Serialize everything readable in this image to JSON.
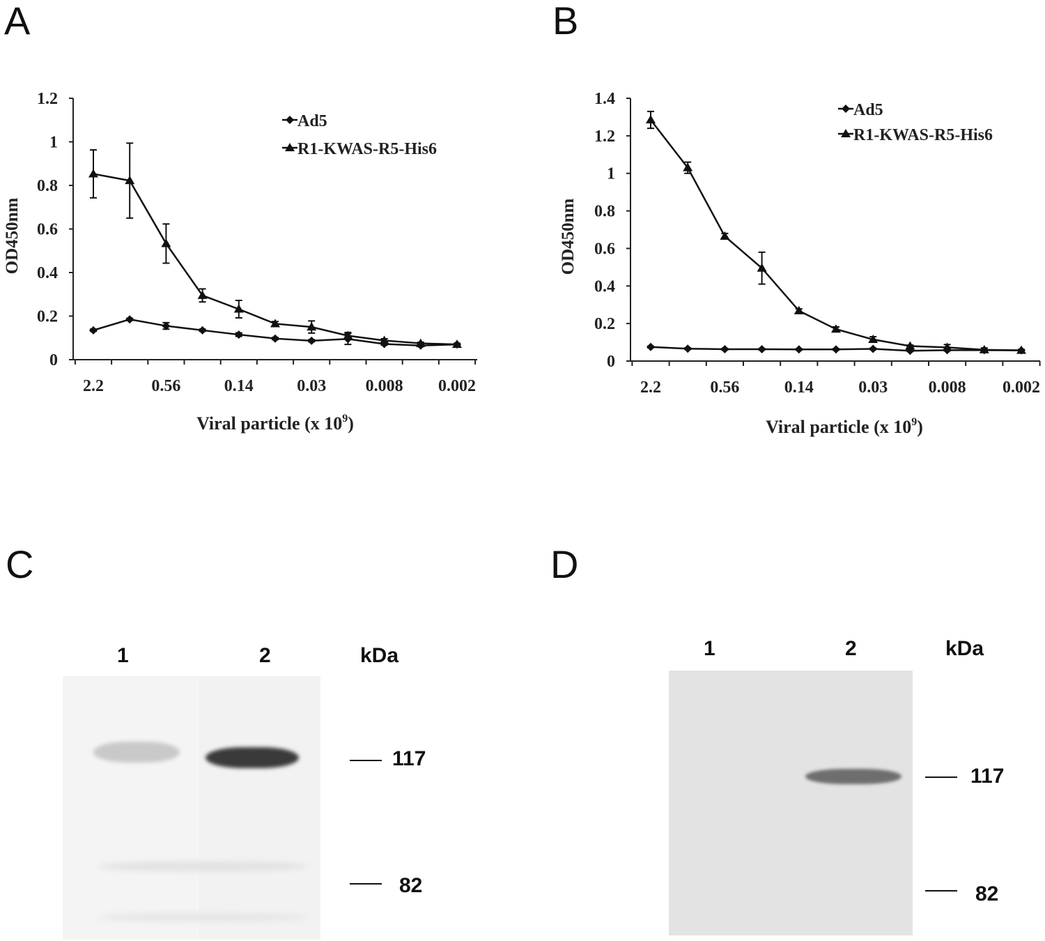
{
  "panels": {
    "A": "A",
    "B": "B",
    "C": "C",
    "D": "D"
  },
  "chart_data": [
    {
      "type": "line",
      "panel": "A",
      "ylabel": "OD450nm",
      "xlabel": "Viral particle (x 10",
      "xlabel_sup": "9",
      "xlabel_close": ")",
      "ylim": [
        0,
        1.2
      ],
      "yticks": [
        "0",
        "0.2",
        "0.4",
        "0.6",
        "0.8",
        "1",
        "1.2"
      ],
      "yticks_values": [
        0,
        0.2,
        0.4,
        0.6,
        0.8,
        1.0,
        1.2
      ],
      "xtick_labels": [
        "2.2",
        "0.56",
        "0.14",
        "0.03",
        "0.008",
        "0.002"
      ],
      "x_points": 11,
      "series": [
        {
          "name": "Ad5",
          "marker": "diamond",
          "values": [
            0.135,
            0.185,
            0.155,
            0.135,
            0.115,
            0.097,
            0.087,
            0.095,
            0.072,
            0.065,
            0.07
          ],
          "errors": [
            0.005,
            0.005,
            0.015,
            0.005,
            0.008,
            0.005,
            0.005,
            0.025,
            0.005,
            0.005,
            0.005
          ]
        },
        {
          "name": "R1-KWAS-R5-His6",
          "marker": "triangle",
          "values": [
            0.853,
            0.822,
            0.533,
            0.295,
            0.232,
            0.165,
            0.15,
            0.11,
            0.088,
            0.075,
            0.07
          ],
          "errors": [
            0.11,
            0.172,
            0.09,
            0.03,
            0.04,
            0.01,
            0.028,
            0.015,
            0.008,
            0.005,
            0.005
          ]
        }
      ],
      "legend_position": "top-right"
    },
    {
      "type": "line",
      "panel": "B",
      "ylabel": "OD450nm",
      "xlabel": "Viral particle (x 10",
      "xlabel_sup": "9",
      "xlabel_close": ")",
      "ylim": [
        0,
        1.4
      ],
      "yticks": [
        "0",
        "0.2",
        "0.4",
        "0.6",
        "0.8",
        "1",
        "1.2",
        "1.4"
      ],
      "yticks_values": [
        0,
        0.2,
        0.4,
        0.6,
        0.8,
        1.0,
        1.2,
        1.4
      ],
      "xtick_labels": [
        "2.2",
        "0.56",
        "0.14",
        "0.03",
        "0.008",
        "0.002"
      ],
      "x_points": 11,
      "series": [
        {
          "name": "Ad5",
          "marker": "diamond",
          "values": [
            0.075,
            0.066,
            0.063,
            0.063,
            0.062,
            0.062,
            0.065,
            0.055,
            0.058,
            0.058,
            0.057
          ],
          "errors": [
            0.004,
            0.004,
            0.004,
            0.004,
            0.004,
            0.004,
            0.004,
            0.004,
            0.004,
            0.004,
            0.004
          ]
        },
        {
          "name": "R1-KWAS-R5-His6",
          "marker": "triangle",
          "values": [
            1.285,
            1.03,
            0.665,
            0.495,
            0.268,
            0.17,
            0.115,
            0.08,
            0.073,
            0.06,
            0.057
          ],
          "errors": [
            0.045,
            0.03,
            0.015,
            0.085,
            0.01,
            0.012,
            0.015,
            0.005,
            0.015,
            0.01,
            0.005
          ]
        }
      ],
      "legend_position": "top-right"
    }
  ],
  "blots": {
    "C": {
      "lanes": [
        "1",
        "2"
      ],
      "unit": "kDa",
      "markers": [
        "117",
        "82"
      ]
    },
    "D": {
      "lanes": [
        "1",
        "2"
      ],
      "unit": "kDa",
      "markers": [
        "117",
        "82"
      ]
    }
  }
}
